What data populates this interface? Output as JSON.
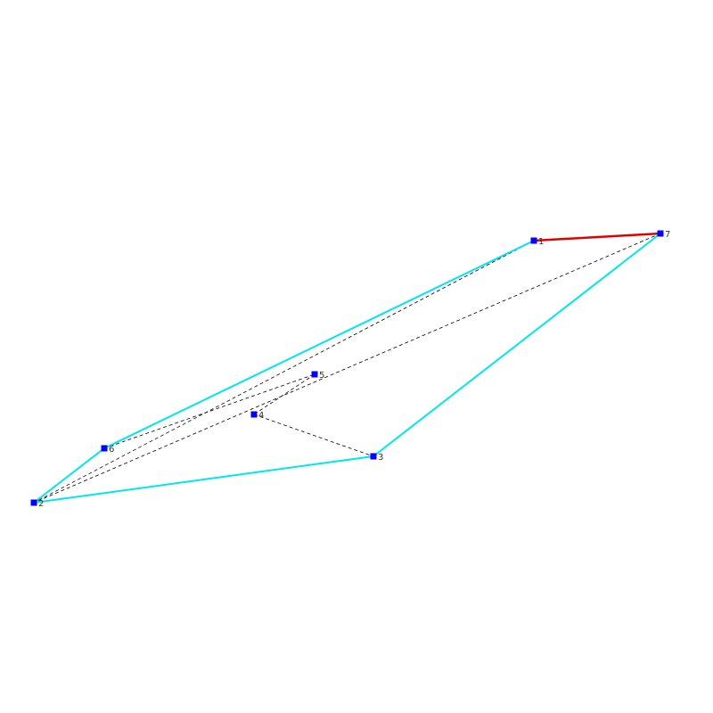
{
  "colors": {
    "hull_edge": "#00e5ee",
    "highlight_edge": "#e00000",
    "dashed_edge": "#000000",
    "node_fill": "#0000ff",
    "background": "#ffffff"
  },
  "nodes": [
    {
      "id": "1",
      "label": "1"
    },
    {
      "id": "2",
      "label": "2"
    },
    {
      "id": "3",
      "label": "3"
    },
    {
      "id": "4",
      "label": "4"
    },
    {
      "id": "5",
      "label": "5"
    },
    {
      "id": "6",
      "label": "6"
    },
    {
      "id": "7",
      "label": "7"
    }
  ],
  "edges": [
    {
      "from": "1",
      "to": "6",
      "style": "hull"
    },
    {
      "from": "6",
      "to": "2",
      "style": "hull"
    },
    {
      "from": "2",
      "to": "3",
      "style": "hull"
    },
    {
      "from": "3",
      "to": "7",
      "style": "hull"
    },
    {
      "from": "1",
      "to": "7",
      "style": "highlight"
    },
    {
      "from": "1",
      "to": "6",
      "style": "dashed"
    },
    {
      "from": "1",
      "to": "2",
      "style": "dashed"
    },
    {
      "from": "7",
      "to": "2",
      "style": "dashed"
    },
    {
      "from": "6",
      "to": "5",
      "style": "dashed"
    },
    {
      "from": "2",
      "to": "3",
      "style": "dashed"
    },
    {
      "from": "5",
      "to": "4",
      "style": "dashed"
    },
    {
      "from": "4",
      "to": "3",
      "style": "dashed"
    }
  ]
}
